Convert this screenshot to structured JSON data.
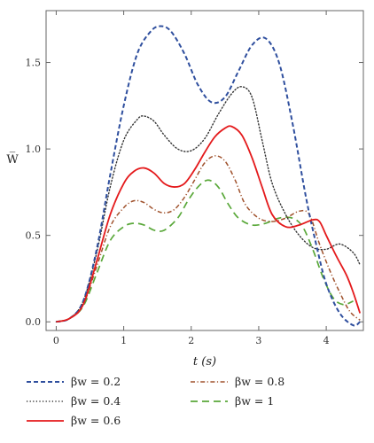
{
  "chart_data": {
    "type": "line",
    "xlabel": "t (s)",
    "ylabel": "W̅",
    "xlim": [
      -0.15,
      4.55
    ],
    "ylim": [
      -0.05,
      1.8
    ],
    "xticks": [
      0,
      1,
      2,
      3,
      4
    ],
    "yticks": [
      0.0,
      0.5,
      1.0,
      1.5
    ],
    "xtick_labels": [
      "0",
      "1",
      "2",
      "3",
      "4"
    ],
    "ytick_labels": [
      "0.0",
      "0.5",
      "1.0",
      "1.5"
    ],
    "legend_position": "bottom",
    "series": [
      {
        "name": "βw = 0.2",
        "color": "#2f4f9e",
        "dash": "dashed",
        "x": [
          0,
          0.2,
          0.4,
          0.6,
          0.8,
          1.0,
          1.2,
          1.4,
          1.55,
          1.7,
          1.9,
          2.1,
          2.3,
          2.5,
          2.7,
          2.9,
          3.1,
          3.3,
          3.5,
          3.7,
          3.85,
          4.0,
          4.2,
          4.4,
          4.5
        ],
        "y": [
          0,
          0.02,
          0.12,
          0.42,
          0.85,
          1.25,
          1.55,
          1.68,
          1.71,
          1.68,
          1.55,
          1.37,
          1.27,
          1.3,
          1.45,
          1.6,
          1.64,
          1.5,
          1.15,
          0.72,
          0.45,
          0.22,
          0.05,
          -0.02,
          0
        ]
      },
      {
        "name": "βw = 0.4",
        "color": "#333333",
        "dash": "dotted",
        "x": [
          0,
          0.2,
          0.4,
          0.6,
          0.8,
          1.0,
          1.2,
          1.3,
          1.45,
          1.6,
          1.8,
          2.0,
          2.2,
          2.4,
          2.6,
          2.75,
          2.9,
          3.05,
          3.2,
          3.4,
          3.6,
          3.8,
          4.0,
          4.2,
          4.4,
          4.5
        ],
        "y": [
          0,
          0.02,
          0.12,
          0.4,
          0.78,
          1.05,
          1.17,
          1.19,
          1.16,
          1.08,
          1.0,
          0.99,
          1.06,
          1.2,
          1.32,
          1.36,
          1.3,
          1.05,
          0.8,
          0.62,
          0.5,
          0.43,
          0.42,
          0.45,
          0.4,
          0.33
        ]
      },
      {
        "name": "βw = 0.6",
        "color": "#e41a1c",
        "dash": "solid",
        "x": [
          0,
          0.2,
          0.4,
          0.6,
          0.8,
          1.0,
          1.15,
          1.3,
          1.45,
          1.6,
          1.75,
          1.9,
          2.05,
          2.2,
          2.35,
          2.5,
          2.6,
          2.75,
          2.9,
          3.05,
          3.2,
          3.4,
          3.6,
          3.8,
          3.9,
          4.0,
          4.15,
          4.3,
          4.4,
          4.5
        ],
        "y": [
          0,
          0.02,
          0.1,
          0.35,
          0.62,
          0.8,
          0.87,
          0.89,
          0.86,
          0.8,
          0.78,
          0.8,
          0.88,
          0.98,
          1.07,
          1.12,
          1.13,
          1.08,
          0.95,
          0.78,
          0.62,
          0.55,
          0.56,
          0.59,
          0.58,
          0.5,
          0.38,
          0.27,
          0.17,
          0.05
        ]
      },
      {
        "name": "βw = 0.8",
        "color": "#a0522d",
        "dash": "dashdot",
        "x": [
          0,
          0.2,
          0.4,
          0.6,
          0.8,
          1.0,
          1.15,
          1.3,
          1.45,
          1.6,
          1.75,
          1.9,
          2.05,
          2.2,
          2.35,
          2.5,
          2.65,
          2.8,
          3.0,
          3.2,
          3.4,
          3.6,
          3.75,
          3.9,
          4.05,
          4.2,
          4.35,
          4.5
        ],
        "y": [
          0,
          0.02,
          0.1,
          0.32,
          0.55,
          0.66,
          0.7,
          0.69,
          0.65,
          0.63,
          0.65,
          0.72,
          0.82,
          0.92,
          0.96,
          0.93,
          0.82,
          0.68,
          0.6,
          0.58,
          0.6,
          0.64,
          0.62,
          0.45,
          0.3,
          0.17,
          0.06,
          0.01
        ]
      },
      {
        "name": "βw = 1",
        "color": "#5aa83a",
        "dash": "longdash",
        "x": [
          0,
          0.2,
          0.4,
          0.6,
          0.8,
          1.0,
          1.15,
          1.3,
          1.45,
          1.6,
          1.8,
          1.95,
          2.1,
          2.25,
          2.4,
          2.55,
          2.7,
          2.9,
          3.1,
          3.3,
          3.5,
          3.65,
          3.8,
          3.95,
          4.1,
          4.25,
          4.4
        ],
        "y": [
          0,
          0.02,
          0.09,
          0.28,
          0.47,
          0.55,
          0.57,
          0.56,
          0.53,
          0.53,
          0.6,
          0.7,
          0.78,
          0.82,
          0.78,
          0.68,
          0.6,
          0.56,
          0.57,
          0.6,
          0.6,
          0.55,
          0.42,
          0.26,
          0.14,
          0.1,
          0.12
        ]
      }
    ]
  }
}
